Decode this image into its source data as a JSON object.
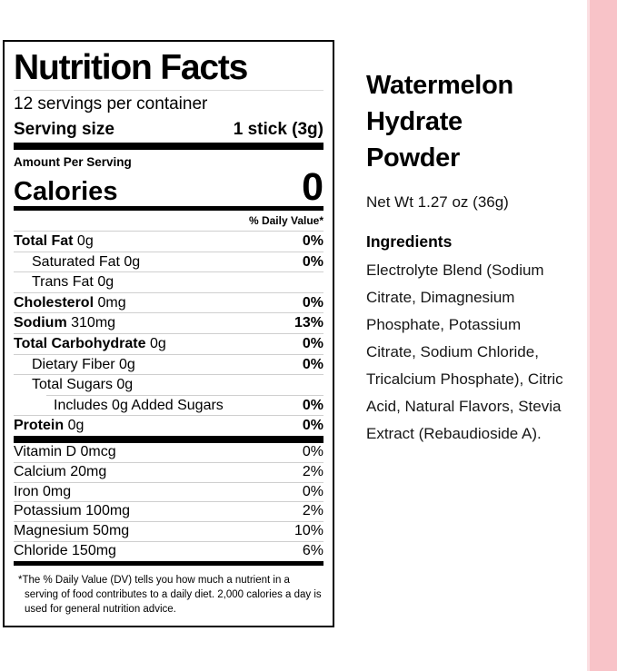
{
  "label": {
    "title": "Nutrition Facts",
    "servings_per_container": "12 servings per container",
    "serving_size_label": "Serving size",
    "serving_size_value": "1 stick (3g)",
    "amount_per_serving": "Amount Per Serving",
    "calories_label": "Calories",
    "calories_value": "0",
    "daily_value_header": "% Daily Value*",
    "nutrients": [
      {
        "bold": "Total Fat",
        "rest": " 0g",
        "pct": "0%"
      },
      {
        "bold": "",
        "rest": "Saturated Fat 0g",
        "pct": "0%"
      },
      {
        "bold": "",
        "rest": "Trans Fat 0g",
        "pct": ""
      },
      {
        "bold": "Cholesterol",
        "rest": " 0mg",
        "pct": "0%"
      },
      {
        "bold": "Sodium",
        "rest": " 310mg",
        "pct": "13%"
      },
      {
        "bold": "Total Carbohydrate",
        "rest": " 0g",
        "pct": "0%"
      },
      {
        "bold": "",
        "rest": "Dietary Fiber 0g",
        "pct": "0%"
      },
      {
        "bold": "",
        "rest": "Total Sugars 0g",
        "pct": ""
      },
      {
        "bold": "",
        "rest": "Includes 0g Added Sugars",
        "pct": "0%"
      },
      {
        "bold": "Protein",
        "rest": " 0g",
        "pct": "0%"
      }
    ],
    "minerals": [
      {
        "name": "Vitamin D 0mcg",
        "pct": "0%"
      },
      {
        "name": "Calcium 20mg",
        "pct": "2%"
      },
      {
        "name": "Iron 0mg",
        "pct": "0%"
      },
      {
        "name": "Potassium 100mg",
        "pct": "2%"
      },
      {
        "name": "Magnesium 50mg",
        "pct": "10%"
      },
      {
        "name": "Chloride 150mg",
        "pct": "6%"
      }
    ],
    "footnote_marker": "*",
    "footnote": "The % Daily Value (DV) tells you how much a nutrient in a serving of food contributes to a daily diet. 2,000 calories a day is used for general nutrition advice."
  },
  "product": {
    "name_line1": "Watermelon",
    "name_line2": "Hydrate",
    "name_line3": "Powder",
    "net_weight": "Net Wt 1.27 oz (36g)",
    "ingredients_title": "Ingredients",
    "ingredients_text": "Electrolyte Blend (Sodium Citrate, Dimagnesium Phosphate, Potassium Citrate, Sodium Chloride, Tricalcium Phosphate), Citric Acid, Natural Flavors, Stevia Extract (Rebaudioside A)."
  },
  "colors": {
    "accent_pink": "#f8c3c8",
    "accent_pink_edge": "#fbdfe2",
    "text": "#000000",
    "divider": "#cfcfcf"
  }
}
